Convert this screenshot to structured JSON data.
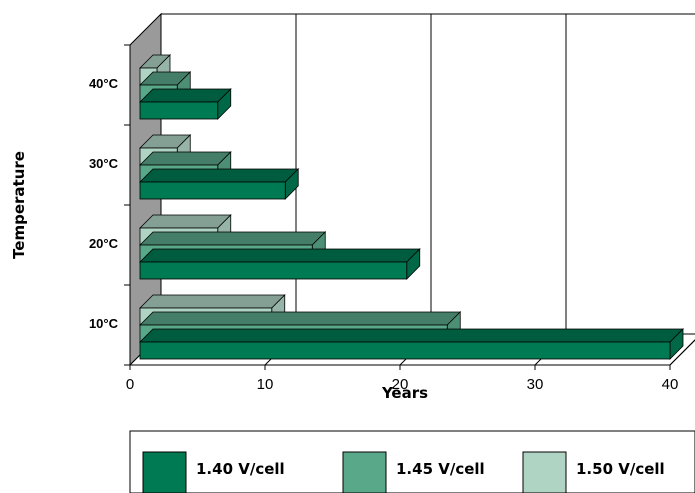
{
  "chart_data": {
    "type": "bar",
    "orientation": "horizontal",
    "three_d": true,
    "categories": [
      "10°C",
      "20°C",
      "30°C",
      "40°C"
    ],
    "series": [
      {
        "name": "1.40 V/cell",
        "color": "#007a52",
        "values": [
          40,
          20.5,
          11.5,
          6.5
        ]
      },
      {
        "name": "1.45 V/cell",
        "color": "#5aa88a",
        "values": [
          23.5,
          13.5,
          6.5,
          3.5
        ]
      },
      {
        "name": "1.50 V/cell",
        "color": "#b0d4c4",
        "values": [
          10.5,
          6.5,
          3.5,
          2
        ]
      }
    ],
    "xlabel": "Years",
    "ylabel": "Temperature",
    "xlim": [
      0,
      40
    ],
    "xticks": [
      0,
      10,
      20,
      30,
      40
    ],
    "grid": true,
    "legend_position": "bottom"
  }
}
